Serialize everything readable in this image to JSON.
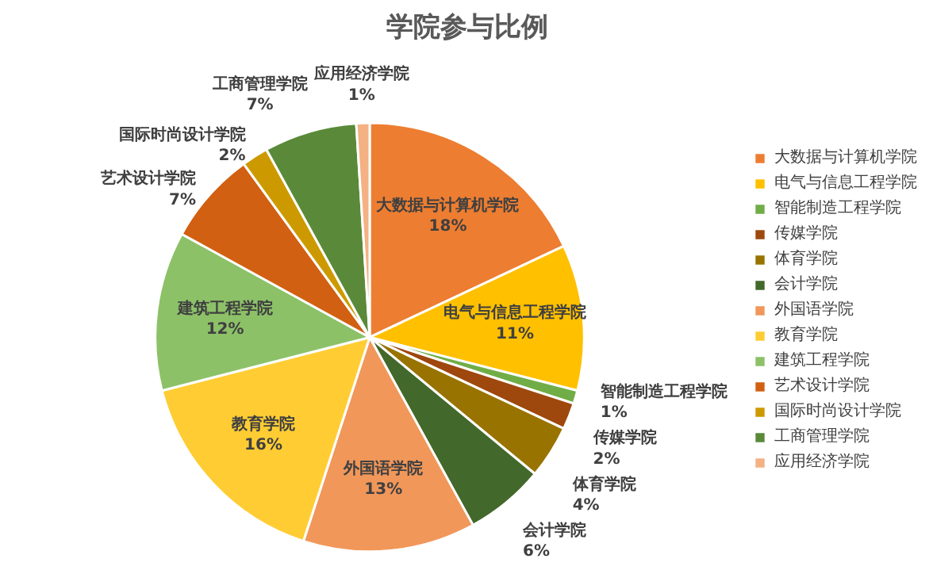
{
  "chart_data": {
    "type": "pie",
    "title": "学院参与比例",
    "categories": [
      "大数据与计算机学院",
      "电气与信息工程学院",
      "智能制造工程学院",
      "传媒学院",
      "体育学院",
      "会计学院",
      "外国语学院",
      "教育学院",
      "建筑工程学院",
      "艺术设计学院",
      "国际时尚设计学院",
      "工商管理学院",
      "应用经济学院"
    ],
    "values": [
      18,
      11,
      1,
      2,
      4,
      6,
      13,
      16,
      12,
      7,
      2,
      7,
      1
    ],
    "value_labels": [
      "18%",
      "11%",
      "1%",
      "2%",
      "4%",
      "6%",
      "13%",
      "16%",
      "12%",
      "7%",
      "2%",
      "7%",
      "1%"
    ],
    "colors": [
      "#ed7d31",
      "#ffc000",
      "#70ad47",
      "#9e480e",
      "#997300",
      "#43682b",
      "#f1975a",
      "#ffcd33",
      "#8cc168",
      "#d26012",
      "#cc9a00",
      "#5a8a39",
      "#f4b183"
    ],
    "legend": "right"
  }
}
